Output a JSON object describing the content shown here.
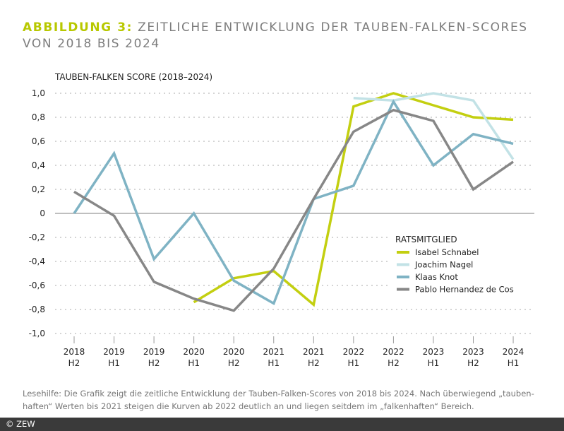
{
  "title": {
    "lead": "ABBILDUNG 3:",
    "text": "ZEITLICHE ENTWICKLUNG DER TAUBEN-FALKEN-SCORES VON 2018 BIS 2024"
  },
  "caption": "Lesehilfe: Die Grafik zeigt die zeitliche Entwicklung der Tauben-Falken-Scores von 2018 bis 2024. Nach überwiegend „tauben-haften“ Werten bis 2021 steigen die Kurven ab 2022 deutlich an und liegen seitdem im „falkenhaften“ Bereich.",
  "footer": "© ZEW",
  "chart_data": {
    "type": "line",
    "ylabel": "TAUBEN-FALKEN SCORE (2018–2024)",
    "ylim": [
      -1.0,
      1.0
    ],
    "yticks": [
      1.0,
      0.8,
      0.6,
      0.4,
      0.2,
      0,
      -0.2,
      -0.4,
      -0.6,
      -0.8,
      -1.0
    ],
    "ytick_labels": [
      "1,0",
      "0,8",
      "0,6",
      "0,4",
      "0,2",
      "0",
      "-0,2",
      "-0,4",
      "-0,6",
      "-0,8",
      "-1,0"
    ],
    "categories": [
      [
        "2018",
        "H2"
      ],
      [
        "2019",
        "H1"
      ],
      [
        "2019",
        "H2"
      ],
      [
        "2020",
        "H1"
      ],
      [
        "2020",
        "H2"
      ],
      [
        "2021",
        "H1"
      ],
      [
        "2021",
        "H2"
      ],
      [
        "2022",
        "H1"
      ],
      [
        "2022",
        "H2"
      ],
      [
        "2023",
        "H1"
      ],
      [
        "2023",
        "H2"
      ],
      [
        "2024",
        "H1"
      ]
    ],
    "grid": "horizontal dotted",
    "legend": {
      "title": "RATSMITGLIED",
      "placement": "bottom-right"
    },
    "series": [
      {
        "name": "Isabel Schnabel",
        "color": "#c3cf10",
        "values": [
          null,
          null,
          null,
          -0.74,
          -0.54,
          -0.48,
          -0.76,
          0.89,
          1.0,
          0.9,
          0.8,
          0.78
        ]
      },
      {
        "name": "Joachim Nagel",
        "color": "#c2e2e6",
        "values": [
          null,
          null,
          null,
          null,
          null,
          null,
          null,
          0.96,
          0.94,
          1.0,
          0.94,
          0.45
        ]
      },
      {
        "name": "Klaas Knot",
        "color": "#7fb3c4",
        "values": [
          0,
          0.5,
          -0.38,
          0,
          -0.56,
          -0.75,
          0.12,
          0.23,
          0.93,
          0.4,
          0.66,
          0.58
        ]
      },
      {
        "name": "Pablo Hernandez de Cos",
        "color": "#878787",
        "values": [
          0.18,
          -0.02,
          -0.57,
          -0.71,
          -0.81,
          -0.46,
          0.12,
          0.68,
          0.86,
          0.77,
          0.2,
          0.43
        ]
      }
    ]
  }
}
